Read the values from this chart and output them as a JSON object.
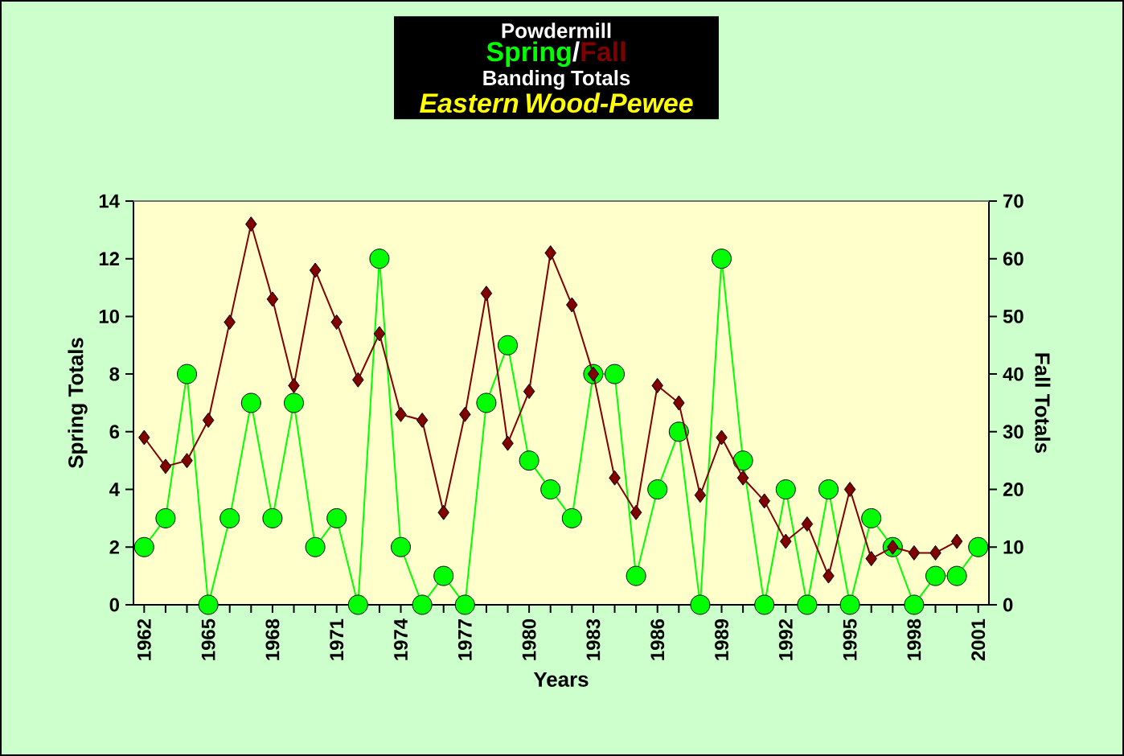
{
  "chart_data": {
    "type": "line",
    "title": "Powdermill",
    "subtitle": "Eastern Wood-Pewee",
    "annotations": [
      "/",
      "Banding Totals"
    ],
    "xlabel": "Years",
    "ylabel": "Spring Totals",
    "y2label": "Fall Totals",
    "categories": [
      "1962",
      null,
      null,
      "1965",
      null,
      null,
      "1968",
      null,
      null,
      "1971",
      null,
      null,
      "1974",
      null,
      null,
      "1977",
      null,
      null,
      "1980",
      null,
      null,
      "1983",
      null,
      null,
      "1986",
      null,
      null,
      "1989",
      null,
      null,
      "1992",
      null,
      null,
      "1995",
      null,
      null,
      "1998",
      null,
      null,
      "2001"
    ],
    "series": [
      {
        "name": "Spring",
        "color": "#00ff00",
        "marker": "circle",
        "values": [
          2,
          3,
          8,
          0,
          3,
          7,
          3,
          7,
          2,
          3,
          0,
          12,
          2,
          0,
          1,
          0,
          7,
          9,
          5,
          4,
          3,
          8,
          8,
          1,
          4,
          6,
          0,
          12,
          5,
          0,
          4,
          0,
          4,
          0,
          3,
          2,
          0,
          1,
          1,
          2
        ]
      },
      {
        "name": "Fall",
        "color": "#800000",
        "marker": "diamond",
        "axis": "y2",
        "values": [
          29,
          24,
          25,
          32,
          49,
          66,
          53,
          38,
          58,
          49,
          39,
          47,
          33,
          32,
          16,
          33,
          54,
          28,
          37,
          61,
          52,
          40,
          22,
          16,
          38,
          35,
          19,
          29,
          22,
          18,
          11,
          14,
          5,
          20,
          8,
          10,
          9,
          9,
          11,
          null
        ]
      }
    ],
    "ylim": [
      0,
      14
    ],
    "yticks": [
      0,
      2,
      4,
      6,
      8,
      10,
      12,
      14
    ],
    "y2lim": [
      0,
      70
    ],
    "y2ticks": [
      0,
      10,
      20,
      30,
      40,
      50,
      60,
      70
    ],
    "grid": false
  }
}
